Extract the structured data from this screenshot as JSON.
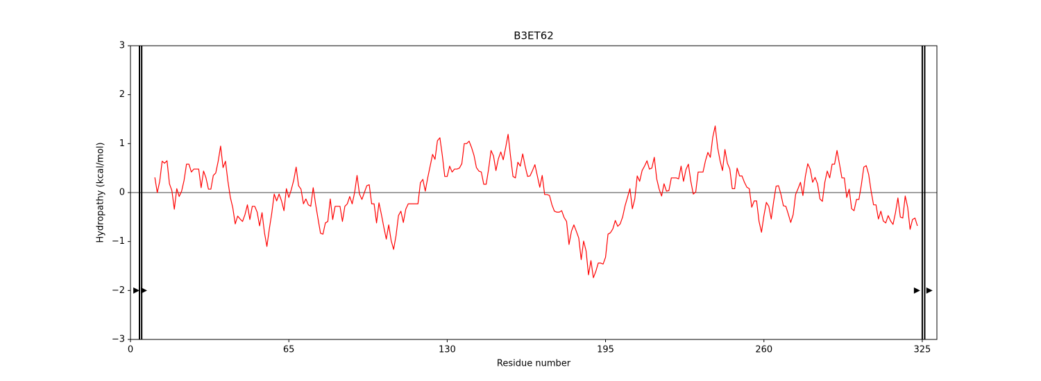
{
  "chart_data": {
    "type": "line",
    "title": "B3ET62",
    "x_label": "Residue number",
    "y_label": "Hydropathy (kcal/mol)",
    "color": "#ff0000",
    "xlim": [
      0,
      331
    ],
    "ylim": [
      -3,
      3
    ],
    "xticks": [
      0,
      65,
      130,
      195,
      260,
      325
    ],
    "yticks": [
      {
        "value": -3,
        "label": "−3"
      },
      {
        "value": -2,
        "label": "−2"
      },
      {
        "value": -1,
        "label": "−1"
      },
      0,
      1,
      2,
      3
    ],
    "hline": 0,
    "vlines": [
      3.7,
      4.6,
      325,
      326
    ],
    "triangle_markers": {
      "x": [
        2.3,
        5.4,
        322.7,
        327.8
      ],
      "y": [
        -2,
        -2,
        -2,
        -2
      ]
    },
    "x": [
      10,
      11,
      12,
      13,
      14,
      15,
      16,
      17,
      18,
      19,
      20,
      21,
      22,
      23,
      24,
      25,
      26,
      27,
      28,
      29,
      30,
      31,
      32,
      33,
      34,
      35,
      36,
      37,
      38,
      39,
      40,
      41,
      42,
      43,
      44,
      45,
      46,
      47,
      48,
      49,
      50,
      51,
      52,
      53,
      54,
      55,
      56,
      57,
      58,
      59,
      60,
      61,
      62,
      63,
      64,
      65,
      66,
      67,
      68,
      69,
      70,
      71,
      72,
      73,
      74,
      75,
      76,
      77,
      78,
      79,
      80,
      81,
      82,
      83,
      84,
      85,
      86,
      87,
      88,
      89,
      90,
      91,
      92,
      93,
      94,
      95,
      96,
      97,
      98,
      99,
      100,
      101,
      102,
      103,
      104,
      105,
      106,
      107,
      108,
      109,
      110,
      111,
      112,
      113,
      114,
      115,
      116,
      117,
      118,
      119,
      120,
      121,
      122,
      123,
      124,
      125,
      126,
      127,
      128,
      129,
      130,
      131,
      132,
      133,
      134,
      135,
      136,
      137,
      138,
      139,
      140,
      141,
      142,
      143,
      144,
      145,
      146,
      147,
      148,
      149,
      150,
      151,
      152,
      153,
      154,
      155,
      156,
      157,
      158,
      159,
      160,
      161,
      162,
      163,
      164,
      165,
      166,
      167,
      168,
      169,
      170,
      171,
      172,
      173,
      174,
      175,
      176,
      177,
      178,
      179,
      180,
      181,
      182,
      183,
      184,
      185,
      186,
      187,
      188,
      189,
      190,
      191,
      192,
      193,
      194,
      195,
      196,
      197,
      198,
      199,
      200,
      201,
      202,
      203,
      204,
      205,
      206,
      207,
      208,
      209,
      210,
      211,
      212,
      213,
      214,
      215,
      216,
      217,
      218,
      219,
      220,
      221,
      222,
      223,
      224,
      225,
      226,
      227,
      228,
      229,
      230,
      231,
      232,
      233,
      234,
      235,
      236,
      237,
      238,
      239,
      240,
      241,
      242,
      243,
      244,
      245,
      246,
      247,
      248,
      249,
      250,
      251,
      252,
      253,
      254,
      255,
      256,
      257,
      258,
      259,
      260,
      261,
      262,
      263,
      264,
      265,
      266,
      267,
      268,
      269,
      270,
      271,
      272,
      273,
      274,
      275,
      276,
      277,
      278,
      279,
      280,
      281,
      282,
      283,
      284,
      285,
      286,
      287,
      288,
      289,
      290,
      291,
      292,
      293,
      294,
      295,
      296,
      297,
      298,
      299,
      300,
      301,
      302,
      303,
      304,
      305,
      306,
      307,
      308,
      309,
      310,
      311,
      312,
      313,
      314,
      315,
      316,
      317,
      318,
      319,
      320,
      321,
      322,
      323
    ],
    "values": [
      0.31,
      0.0,
      0.23,
      0.64,
      0.6,
      0.65,
      0.18,
      0.04,
      -0.34,
      0.08,
      -0.08,
      0.03,
      0.25,
      0.58,
      0.58,
      0.42,
      0.48,
      0.48,
      0.48,
      0.1,
      0.44,
      0.3,
      0.07,
      0.07,
      0.35,
      0.4,
      0.64,
      0.95,
      0.51,
      0.64,
      0.23,
      -0.1,
      -0.31,
      -0.64,
      -0.48,
      -0.54,
      -0.59,
      -0.45,
      -0.25,
      -0.55,
      -0.28,
      -0.28,
      -0.4,
      -0.68,
      -0.41,
      -0.82,
      -1.1,
      -0.74,
      -0.42,
      -0.03,
      -0.17,
      -0.03,
      -0.17,
      -0.37,
      0.08,
      -0.1,
      0.06,
      0.25,
      0.52,
      0.14,
      0.07,
      -0.23,
      -0.13,
      -0.25,
      -0.28,
      0.1,
      -0.24,
      -0.54,
      -0.83,
      -0.85,
      -0.62,
      -0.59,
      -0.13,
      -0.55,
      -0.28,
      -0.28,
      -0.28,
      -0.59,
      -0.28,
      -0.23,
      -0.08,
      -0.23,
      0.0,
      0.35,
      -0.03,
      -0.14,
      0.0,
      0.14,
      0.16,
      -0.23,
      -0.23,
      -0.62,
      -0.21,
      -0.45,
      -0.71,
      -0.95,
      -0.66,
      -0.98,
      -1.16,
      -0.88,
      -0.47,
      -0.38,
      -0.61,
      -0.34,
      -0.23,
      -0.23,
      -0.23,
      -0.23,
      -0.23,
      0.2,
      0.27,
      0.03,
      0.3,
      0.54,
      0.78,
      0.68,
      1.06,
      1.12,
      0.76,
      0.33,
      0.33,
      0.54,
      0.42,
      0.48,
      0.48,
      0.5,
      0.59,
      1.0,
      1.0,
      1.05,
      0.92,
      0.76,
      0.51,
      0.44,
      0.42,
      0.17,
      0.17,
      0.48,
      0.86,
      0.75,
      0.45,
      0.69,
      0.83,
      0.67,
      0.92,
      1.19,
      0.74,
      0.33,
      0.3,
      0.62,
      0.54,
      0.79,
      0.54,
      0.33,
      0.34,
      0.45,
      0.57,
      0.34,
      0.11,
      0.35,
      -0.04,
      -0.04,
      -0.06,
      -0.25,
      -0.38,
      -0.4,
      -0.4,
      -0.37,
      -0.51,
      -0.59,
      -1.06,
      -0.79,
      -0.66,
      -0.79,
      -0.93,
      -1.37,
      -0.99,
      -1.19,
      -1.68,
      -1.39,
      -1.74,
      -1.61,
      -1.44,
      -1.44,
      -1.46,
      -1.32,
      -0.85,
      -0.82,
      -0.74,
      -0.57,
      -0.69,
      -0.64,
      -0.5,
      -0.27,
      -0.1,
      0.08,
      -0.33,
      -0.13,
      0.34,
      0.23,
      0.45,
      0.54,
      0.65,
      0.48,
      0.5,
      0.72,
      0.28,
      0.07,
      -0.07,
      0.18,
      0.03,
      0.04,
      0.3,
      0.3,
      0.3,
      0.28,
      0.54,
      0.23,
      0.47,
      0.58,
      0.23,
      -0.03,
      0.01,
      0.42,
      0.42,
      0.42,
      0.65,
      0.82,
      0.72,
      1.13,
      1.36,
      0.92,
      0.65,
      0.45,
      0.88,
      0.6,
      0.48,
      0.08,
      0.08,
      0.5,
      0.34,
      0.34,
      0.21,
      0.11,
      0.08,
      -0.3,
      -0.17,
      -0.17,
      -0.59,
      -0.81,
      -0.47,
      -0.2,
      -0.28,
      -0.54,
      -0.18,
      0.13,
      0.14,
      -0.04,
      -0.27,
      -0.28,
      -0.44,
      -0.61,
      -0.45,
      -0.04,
      0.08,
      0.21,
      -0.06,
      0.33,
      0.59,
      0.48,
      0.21,
      0.31,
      0.18,
      -0.13,
      -0.18,
      0.21,
      0.44,
      0.3,
      0.58,
      0.58,
      0.86,
      0.59,
      0.3,
      0.3,
      -0.1,
      0.07,
      -0.33,
      -0.37,
      -0.14,
      -0.14,
      0.16,
      0.52,
      0.55,
      0.37,
      0.03,
      -0.25,
      -0.25,
      -0.54,
      -0.38,
      -0.58,
      -0.62,
      -0.47,
      -0.58,
      -0.65,
      -0.41,
      -0.11,
      -0.5,
      -0.52,
      -0.07,
      -0.3,
      -0.75,
      -0.55,
      -0.52,
      -0.68
    ]
  }
}
